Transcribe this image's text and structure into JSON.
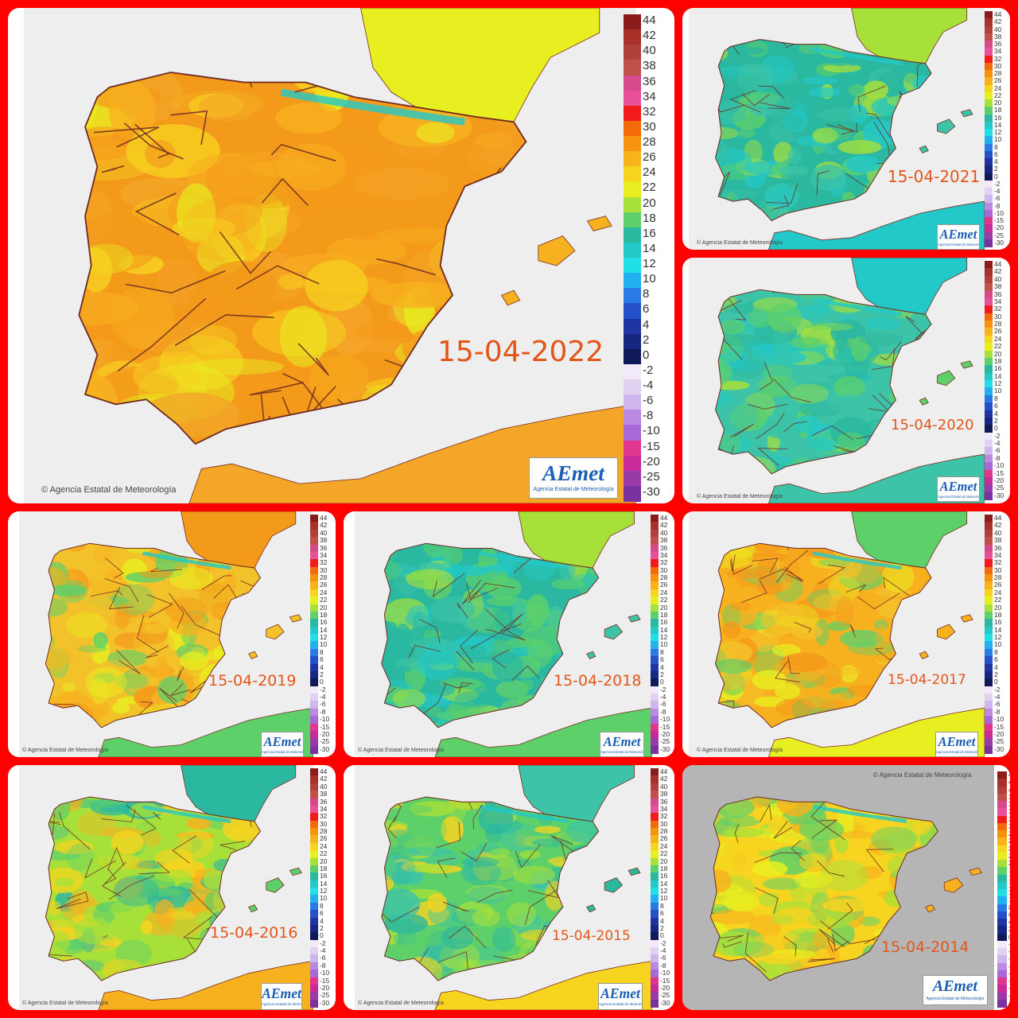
{
  "credit": "Agencia Estatal de Meteorología",
  "logo": {
    "text": "AEmet",
    "subtitle": "Agencia Estatal de Meteorología"
  },
  "legend": {
    "positive": [
      "44",
      "42",
      "40",
      "38",
      "36",
      "34",
      "32",
      "30",
      "28",
      "26",
      "24",
      "22",
      "20",
      "18",
      "16",
      "14",
      "12",
      "10",
      "8",
      "6",
      "4",
      "2",
      "0"
    ],
    "negative": [
      "-2",
      "-4",
      "-6",
      "-8",
      "-10",
      "-15",
      "-20",
      "-25",
      "-30"
    ],
    "positive_colors": [
      "#8b1c1c",
      "#a8322a",
      "#b0403a",
      "#c0504a",
      "#d44a8a",
      "#e8509a",
      "#f21a1a",
      "#f36a0a",
      "#f7920c",
      "#f8b31a",
      "#f7d420",
      "#e8ef20",
      "#a8e03a",
      "#5ed06a",
      "#2bb8a0",
      "#23c8c8",
      "#20dfe6",
      "#23b0ef",
      "#2a7ae6",
      "#2450c8",
      "#1f34a0",
      "#172680",
      "#101a58"
    ],
    "negative_colors": [
      "#f2eaf8",
      "#e2d2f2",
      "#cfb6ec",
      "#b98ae0",
      "#a868d8",
      "#e0368e",
      "#c82a9a",
      "#9a3aa8",
      "#7a32a0"
    ]
  },
  "panels": [
    {
      "date": "15-04-2022",
      "palette": [
        "#f7d420",
        "#f7b11f",
        "#f49a1b",
        "#f3a628",
        "#e8ef20"
      ],
      "accent": "#f49a1b"
    },
    {
      "date": "15-04-2021",
      "palette": [
        "#2bb8a0",
        "#3cc3a8",
        "#5ed06a",
        "#23c8c8",
        "#a8e03a"
      ],
      "accent": "#2bb8a0"
    },
    {
      "date": "15-04-2020",
      "palette": [
        "#2bb8a0",
        "#5ed06a",
        "#a8e03a",
        "#3cc3a8",
        "#23c8c8"
      ],
      "accent": "#3cc3a8"
    },
    {
      "date": "15-04-2019",
      "palette": [
        "#f7b11f",
        "#f3c22a",
        "#e8ef20",
        "#5ed06a",
        "#f49a1b"
      ],
      "accent": "#f3c22a"
    },
    {
      "date": "15-04-2018",
      "palette": [
        "#2bb8a0",
        "#3cc3a8",
        "#23c8c8",
        "#5ed06a",
        "#a8e03a"
      ],
      "accent": "#2bb8a0"
    },
    {
      "date": "15-04-2017",
      "palette": [
        "#f49a1b",
        "#f7b11f",
        "#f3c22a",
        "#e8ef20",
        "#5ed06a"
      ],
      "accent": "#f7b11f"
    },
    {
      "date": "15-04-2016",
      "palette": [
        "#a8e03a",
        "#5ed06a",
        "#f7d420",
        "#f7b11f",
        "#2bb8a0"
      ],
      "accent": "#a8e03a"
    },
    {
      "date": "15-04-2015",
      "palette": [
        "#5ed06a",
        "#2bb8a0",
        "#a8e03a",
        "#f7d420",
        "#3cc3a8"
      ],
      "accent": "#5ed06a"
    },
    {
      "date": "15-04-2014",
      "palette": [
        "#f7d420",
        "#f7b11f",
        "#e8ef20",
        "#a8e03a",
        "#5ed06a"
      ],
      "accent": "#f7d420"
    }
  ]
}
